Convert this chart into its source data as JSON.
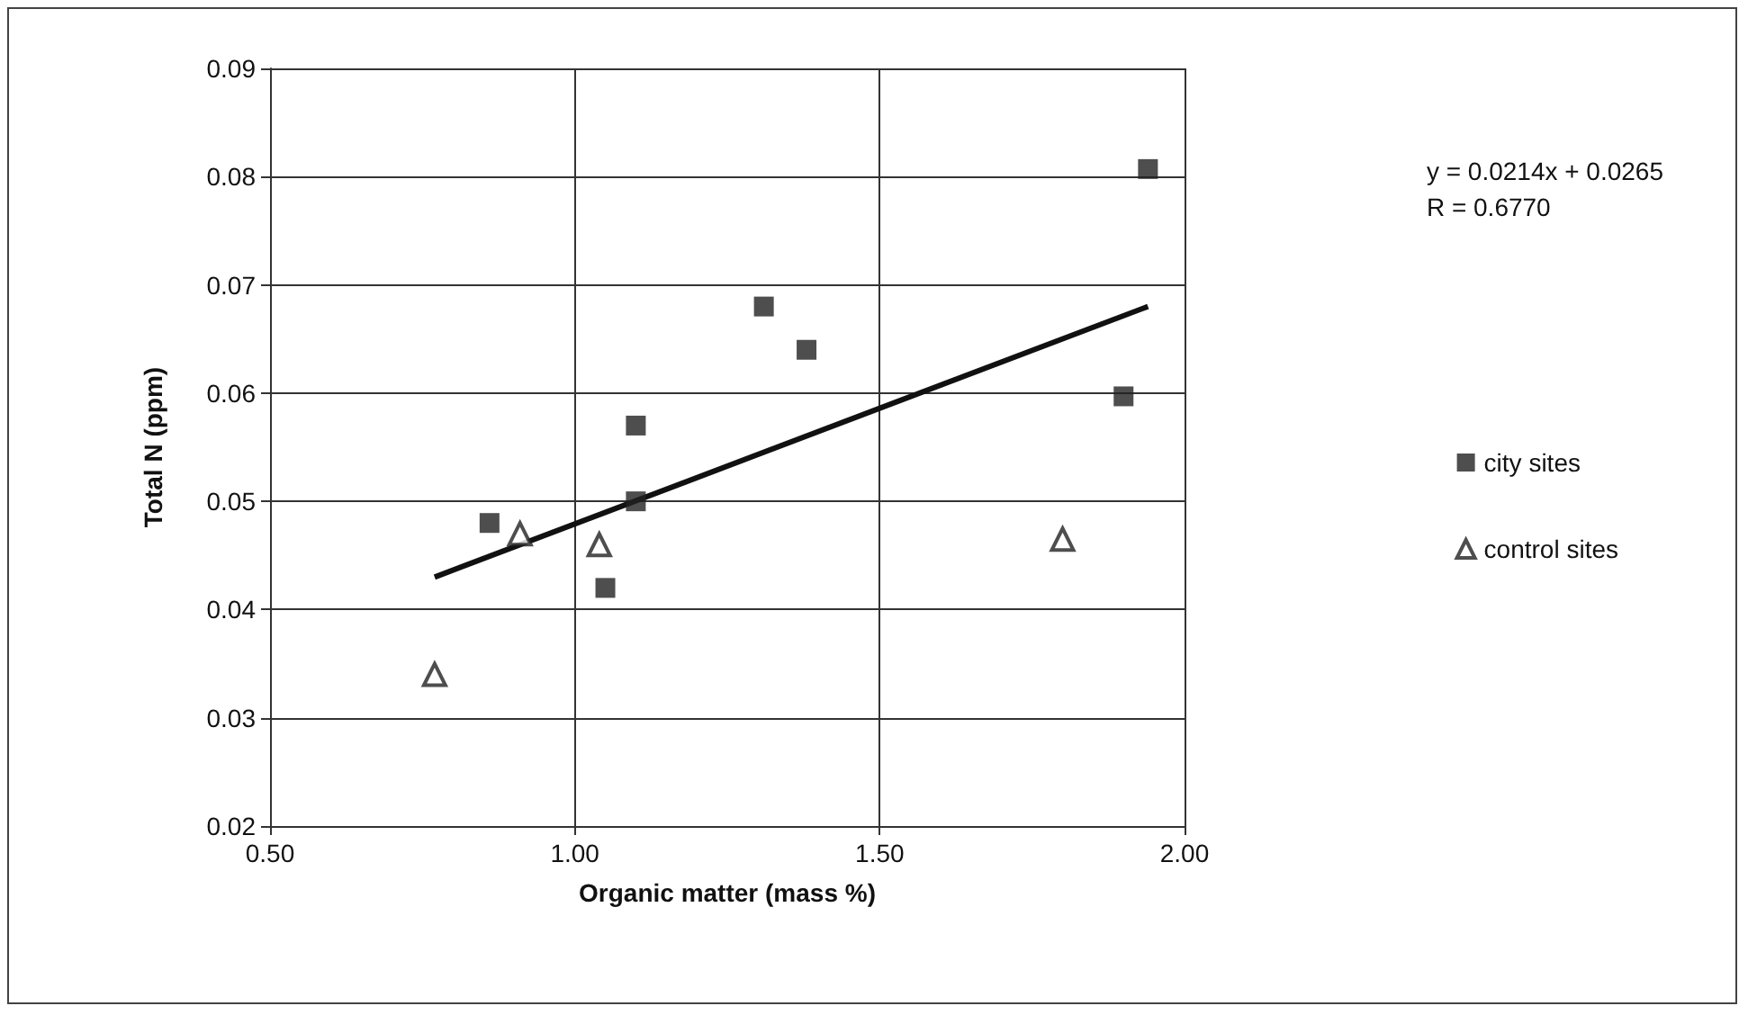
{
  "chart_data": {
    "type": "scatter",
    "xlabel": "Organic matter (mass %)",
    "ylabel": "Total N (ppm)",
    "xlim": [
      0.5,
      2.0
    ],
    "xticks": [
      {
        "value": 0.5,
        "label": "0.50"
      },
      {
        "value": 1.0,
        "label": "1.00"
      },
      {
        "value": 1.5,
        "label": "1.50"
      },
      {
        "value": 2.0,
        "label": "2.00"
      }
    ],
    "ylim": [
      0.02,
      0.09
    ],
    "yticks": [
      0.02,
      0.03,
      0.04,
      0.05,
      0.06,
      0.07,
      0.08,
      0.09
    ],
    "grid": true,
    "legend": "right",
    "annotations": [
      "y = 0.0214x + 0.0265\nR = 0.6770"
    ],
    "series": [
      {
        "name": "city sites",
        "color": "#222222",
        "marker": "square",
        "x": [
          0.86,
          1.1,
          1.1,
          1.05,
          1.31,
          1.38,
          1.9,
          1.94
        ],
        "values": [
          0.048,
          0.057,
          0.05,
          0.042,
          0.068,
          0.064,
          0.0597,
          0.0807
        ]
      },
      {
        "name": "control sites",
        "color": "#222222",
        "marker": "triangle",
        "x": [
          0.77,
          0.91,
          1.04,
          1.8
        ],
        "values": [
          0.034,
          0.047,
          0.046,
          0.0465
        ]
      },
      {
        "type": "line",
        "color": "#111111",
        "marker": "none",
        "x": [
          0.77,
          1.94
        ],
        "values": [
          0.043,
          0.068
        ]
      }
    ]
  }
}
